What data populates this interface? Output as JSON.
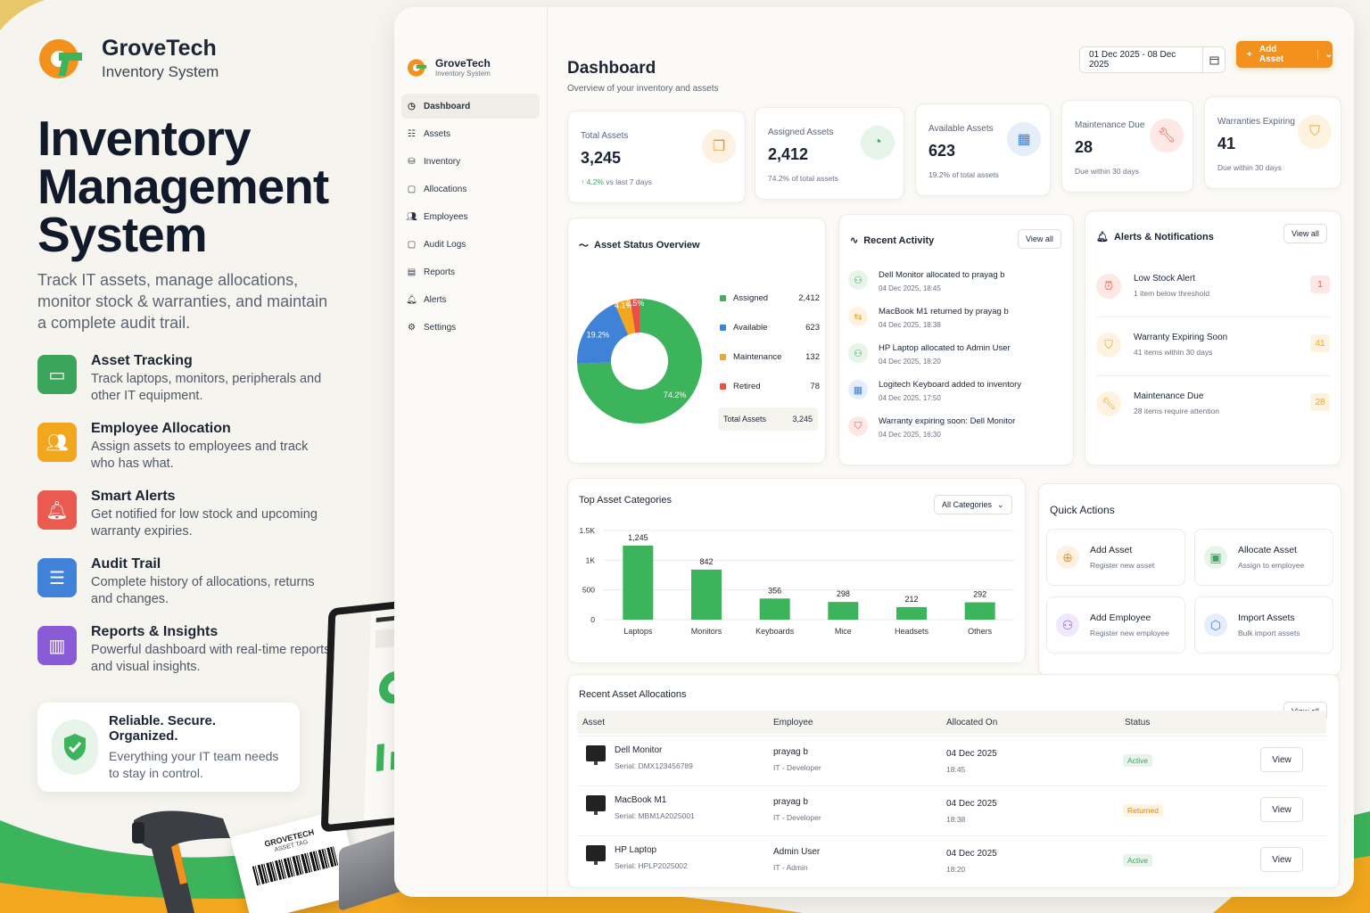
{
  "brand": {
    "name": "GroveTech",
    "subtitle": "Inventory System"
  },
  "hero": {
    "line1": "Inventory",
    "line2": "Management",
    "line3": "System",
    "lead": "Track IT assets, manage allocations, monitor stock & warranties, and maintain a complete audit trail."
  },
  "features": [
    {
      "title": "Asset Tracking",
      "desc": "Track laptops, monitors, peripherals and other IT equipment.",
      "icon": "laptop-icon",
      "color": "#3ba55c"
    },
    {
      "title": "Employee Allocation",
      "desc": "Assign assets to employees and track who has what.",
      "icon": "users-icon",
      "color": "#f2a71e"
    },
    {
      "title": "Smart Alerts",
      "desc": "Get notified for low stock and upcoming warranty expiries.",
      "icon": "bell-icon",
      "color": "#ea5a4f"
    },
    {
      "title": "Audit Trail",
      "desc": "Complete history of allocations, returns and changes.",
      "icon": "document-icon",
      "color": "#3f82d8"
    },
    {
      "title": "Reports & Insights",
      "desc": "Powerful dashboard with real-time reports and visual insights.",
      "icon": "bar-chart-icon",
      "color": "#8a5bd6"
    }
  ],
  "trust": {
    "title": "Reliable. Secure. Organized.",
    "desc": "Everything your IT team needs to stay in control."
  },
  "tag": {
    "title": "GROVETECH",
    "sub": "ASSET TAG"
  },
  "sidebar": {
    "brand": "GroveTech",
    "sub": "Inventory System",
    "items": [
      {
        "label": "Dashboard",
        "icon": "dashboard-icon",
        "active": true
      },
      {
        "label": "Assets",
        "icon": "list-icon"
      },
      {
        "label": "Inventory",
        "icon": "database-icon"
      },
      {
        "label": "Allocations",
        "icon": "folder-icon"
      },
      {
        "label": "Employees",
        "icon": "users-icon"
      },
      {
        "label": "Audit Logs",
        "icon": "folder-icon"
      },
      {
        "label": "Reports",
        "icon": "file-icon"
      },
      {
        "label": "Alerts",
        "icon": "bell-icon"
      },
      {
        "label": "Settings",
        "icon": "gear-icon"
      }
    ]
  },
  "header": {
    "title": "Dashboard",
    "subtitle": "Overview of your inventory and assets",
    "date_range": "01 Dec 2025 - 08 Dec 2025",
    "add_label": "Add Asset"
  },
  "stats": [
    {
      "label": "Total Assets",
      "value": "3,245",
      "trend": "4.2%",
      "note": "vs last 7 days",
      "icon": "boxes-icon",
      "color": "#f2911e",
      "bg": "#fdf1e2"
    },
    {
      "label": "Assigned Assets",
      "value": "2,412",
      "note": "74.2% of total assets",
      "icon": "pie-icon",
      "color": "#3ba55c",
      "bg": "#e6f4ea"
    },
    {
      "label": "Available Assets",
      "value": "623",
      "note": "19.2% of total assets",
      "icon": "calendar-icon",
      "color": "#3f82d8",
      "bg": "#e6eefa"
    },
    {
      "label": "Maintenance Due",
      "value": "28",
      "note": "Due within 30 days",
      "icon": "wrench-icon",
      "color": "#ea5a4f",
      "bg": "#fde8e6"
    },
    {
      "label": "Warranties Expiring",
      "value": "41",
      "note": "Due within 30 days",
      "icon": "shield-icon",
      "color": "#f2a71e",
      "bg": "#fdf3e0"
    }
  ],
  "status": {
    "title": "Asset Status Overview",
    "total_label": "Total Assets",
    "total": "3,245"
  },
  "chart_data": [
    {
      "type": "pie",
      "title": "Asset Status Overview",
      "categories": [
        "Assigned",
        "Available",
        "Maintenance",
        "Retired"
      ],
      "values": [
        2412,
        623,
        132,
        78
      ],
      "labels": [
        "74.2%",
        "19.2%",
        "4.1%",
        "2.5%"
      ],
      "colors": [
        "#3cb45c",
        "#3f82d8",
        "#f2a71e",
        "#ea4f48"
      ]
    },
    {
      "type": "bar",
      "title": "Top Asset Categories",
      "categories": [
        "Laptops",
        "Monitors",
        "Keyboards",
        "Mice",
        "Headsets",
        "Others"
      ],
      "values": [
        1245,
        842,
        356,
        298,
        212,
        292
      ],
      "value_labels": [
        "1,245",
        "842",
        "356",
        "298",
        "212",
        "292"
      ],
      "ylim": [
        0,
        1500
      ],
      "yticks": [
        0,
        500,
        1000,
        1500
      ],
      "ytick_labels": [
        "0",
        "500",
        "1K",
        "1.5K"
      ],
      "color": "#3cb45c",
      "grid": true
    }
  ],
  "activity": {
    "title": "Recent Activity",
    "view_all": "View all",
    "items": [
      {
        "text": "Dell Monitor allocated to prayag b",
        "time": "04 Dec 2025, 18:45",
        "icon": "user-check-icon",
        "color": "#3ba55c",
        "bg": "#e6f4ea"
      },
      {
        "text": "MacBook M1 returned by prayag b",
        "time": "04 Dec 2025, 18:38",
        "icon": "swap-icon",
        "color": "#f2a71e",
        "bg": "#fdf3e0"
      },
      {
        "text": "HP Laptop allocated to Admin User",
        "time": "04 Dec 2025, 18:20",
        "icon": "user-check-icon",
        "color": "#3ba55c",
        "bg": "#e6f4ea"
      },
      {
        "text": "Logitech Keyboard added to inventory",
        "time": "04 Dec 2025, 17:50",
        "icon": "calendar-icon",
        "color": "#3f82d8",
        "bg": "#e6eefa"
      },
      {
        "text": "Warranty expiring soon: Dell Monitor",
        "time": "04 Dec 2025, 16:30",
        "icon": "shield-icon",
        "color": "#ea5a4f",
        "bg": "#fde8e6"
      }
    ]
  },
  "alerts": {
    "title": "Alerts & Notifications",
    "view_all": "View all",
    "items": [
      {
        "title": "Low Stock Alert",
        "desc": "1 item below threshold",
        "count": "1",
        "color": "#ea5a4f",
        "bg": "#fde8e6",
        "icon": "alarm-icon"
      },
      {
        "title": "Warranty Expiring Soon",
        "desc": "41 items within 30 days",
        "count": "41",
        "color": "#f2a71e",
        "bg": "#fdf3e0",
        "icon": "shield-icon"
      },
      {
        "title": "Maintenance Due",
        "desc": "28 items require attention",
        "count": "28",
        "color": "#f2a71e",
        "bg": "#fdf3e0",
        "icon": "wrench-icon"
      }
    ]
  },
  "categories": {
    "title": "Top Asset Categories",
    "filter": "All Categories"
  },
  "quick": {
    "title": "Quick Actions",
    "items": [
      {
        "title": "Add Asset",
        "desc": "Register new asset",
        "icon": "plus-circle-icon",
        "color": "#f2911e",
        "bg": "#fdf1e2"
      },
      {
        "title": "Allocate Asset",
        "desc": "Assign to employee",
        "icon": "clipboard-icon",
        "color": "#3ba55c",
        "bg": "#e6f4ea"
      },
      {
        "title": "Add Employee",
        "desc": "Register new employee",
        "icon": "user-plus-icon",
        "color": "#8a5bd6",
        "bg": "#f0e8fb"
      },
      {
        "title": "Import Assets",
        "desc": "Bulk import assets",
        "icon": "import-icon",
        "color": "#3f82d8",
        "bg": "#e6eefa"
      }
    ]
  },
  "allocations": {
    "title": "Recent Asset Allocations",
    "view_all": "View all",
    "headers": [
      "Asset",
      "Employee",
      "Allocated On",
      "Status"
    ],
    "rows": [
      {
        "asset": "Dell Monitor",
        "serial": "Serial: DMX123456789",
        "employee": "prayag b",
        "role": "IT - Developer",
        "date": "04 Dec 2025",
        "time": "18:45",
        "status": "Active",
        "action": "View"
      },
      {
        "asset": "MacBook M1",
        "serial": "Serial: MBM1A2025001",
        "employee": "prayag b",
        "role": "IT - Developer",
        "date": "04 Dec 2025",
        "time": "18:38",
        "status": "Returned",
        "action": "View"
      },
      {
        "asset": "HP Laptop",
        "serial": "Serial: HPLP2025002",
        "employee": "Admin User",
        "role": "IT - Admin",
        "date": "04 Dec 2025",
        "time": "18:20",
        "status": "Active",
        "action": "View"
      }
    ]
  }
}
